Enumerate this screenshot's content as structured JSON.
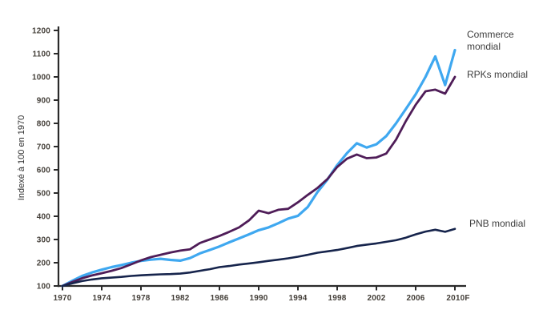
{
  "chart_data": {
    "type": "line",
    "title": "",
    "xlabel": "",
    "ylabel": "Indexé à 100 en 1970",
    "xlim": [
      1970,
      2010
    ],
    "ylim": [
      100,
      1200
    ],
    "grid": false,
    "legend_position": "inline-annotations-right",
    "x_ticks": [
      1970,
      1974,
      1978,
      1982,
      1986,
      1990,
      1994,
      1998,
      2002,
      2006,
      2010
    ],
    "x_tick_labels": [
      "1970",
      "1974",
      "1978",
      "1982",
      "1986",
      "1990",
      "1994",
      "1998",
      "2002",
      "2006",
      "2010F"
    ],
    "y_ticks": [
      100,
      200,
      300,
      400,
      500,
      600,
      700,
      800,
      900,
      1000,
      1100,
      1200
    ],
    "axis_color": "#2a2a2a",
    "tick_label_color": "#45403a",
    "series": [
      {
        "id": "commerce-mondial",
        "name": "Commerce mondial",
        "label_text": "Commerce\nmondial",
        "color": "#3fa8f0",
        "width": 3.2,
        "points": [
          [
            1970,
            100
          ],
          [
            1971,
            122
          ],
          [
            1972,
            143
          ],
          [
            1973,
            158
          ],
          [
            1974,
            170
          ],
          [
            1975,
            181
          ],
          [
            1976,
            190
          ],
          [
            1977,
            200
          ],
          [
            1978,
            208
          ],
          [
            1979,
            213
          ],
          [
            1980,
            217
          ],
          [
            1981,
            212
          ],
          [
            1982,
            209
          ],
          [
            1983,
            220
          ],
          [
            1984,
            240
          ],
          [
            1985,
            255
          ],
          [
            1986,
            270
          ],
          [
            1987,
            288
          ],
          [
            1988,
            305
          ],
          [
            1989,
            322
          ],
          [
            1990,
            340
          ],
          [
            1991,
            352
          ],
          [
            1992,
            370
          ],
          [
            1993,
            390
          ],
          [
            1994,
            402
          ],
          [
            1995,
            440
          ],
          [
            1996,
            505
          ],
          [
            1997,
            558
          ],
          [
            1998,
            620
          ],
          [
            1999,
            672
          ],
          [
            2000,
            714
          ],
          [
            2001,
            696
          ],
          [
            2002,
            710
          ],
          [
            2003,
            745
          ],
          [
            2004,
            800
          ],
          [
            2005,
            862
          ],
          [
            2006,
            925
          ],
          [
            2007,
            1000
          ],
          [
            2008,
            1088
          ],
          [
            2009,
            965
          ],
          [
            2010,
            1115
          ]
        ]
      },
      {
        "id": "rpks-mondial",
        "name": "RPKs mondial",
        "label_text": "RPKs mondial",
        "color": "#4f1d58",
        "width": 2.8,
        "points": [
          [
            1970,
            100
          ],
          [
            1971,
            117
          ],
          [
            1972,
            133
          ],
          [
            1973,
            145
          ],
          [
            1974,
            155
          ],
          [
            1975,
            165
          ],
          [
            1976,
            177
          ],
          [
            1977,
            193
          ],
          [
            1978,
            210
          ],
          [
            1979,
            224
          ],
          [
            1980,
            234
          ],
          [
            1981,
            244
          ],
          [
            1982,
            252
          ],
          [
            1983,
            258
          ],
          [
            1984,
            285
          ],
          [
            1985,
            300
          ],
          [
            1986,
            315
          ],
          [
            1987,
            333
          ],
          [
            1988,
            352
          ],
          [
            1989,
            382
          ],
          [
            1990,
            424
          ],
          [
            1991,
            413
          ],
          [
            1992,
            428
          ],
          [
            1993,
            432
          ],
          [
            1994,
            460
          ],
          [
            1995,
            492
          ],
          [
            1996,
            522
          ],
          [
            1997,
            560
          ],
          [
            1998,
            612
          ],
          [
            1999,
            648
          ],
          [
            2000,
            666
          ],
          [
            2001,
            650
          ],
          [
            2002,
            653
          ],
          [
            2003,
            670
          ],
          [
            2004,
            730
          ],
          [
            2005,
            810
          ],
          [
            2006,
            880
          ],
          [
            2007,
            938
          ],
          [
            2008,
            945
          ],
          [
            2009,
            928
          ],
          [
            2010,
            1000
          ]
        ]
      },
      {
        "id": "pnb-mondial",
        "name": "PNB mondial",
        "label_text": "PNB mondial",
        "color": "#16244c",
        "width": 2.6,
        "points": [
          [
            1970,
            100
          ],
          [
            1971,
            111
          ],
          [
            1972,
            121
          ],
          [
            1973,
            128
          ],
          [
            1974,
            133
          ],
          [
            1975,
            136
          ],
          [
            1976,
            139
          ],
          [
            1977,
            143
          ],
          [
            1978,
            146
          ],
          [
            1979,
            148
          ],
          [
            1980,
            150
          ],
          [
            1981,
            151
          ],
          [
            1982,
            153
          ],
          [
            1983,
            158
          ],
          [
            1984,
            165
          ],
          [
            1985,
            172
          ],
          [
            1986,
            181
          ],
          [
            1987,
            186
          ],
          [
            1988,
            192
          ],
          [
            1989,
            197
          ],
          [
            1990,
            202
          ],
          [
            1991,
            208
          ],
          [
            1992,
            213
          ],
          [
            1993,
            219
          ],
          [
            1994,
            226
          ],
          [
            1995,
            234
          ],
          [
            1996,
            243
          ],
          [
            1997,
            249
          ],
          [
            1998,
            255
          ],
          [
            1999,
            263
          ],
          [
            2000,
            272
          ],
          [
            2001,
            278
          ],
          [
            2002,
            283
          ],
          [
            2003,
            290
          ],
          [
            2004,
            297
          ],
          [
            2005,
            308
          ],
          [
            2006,
            322
          ],
          [
            2007,
            334
          ],
          [
            2008,
            342
          ],
          [
            2009,
            333
          ],
          [
            2010,
            346
          ]
        ]
      }
    ]
  }
}
